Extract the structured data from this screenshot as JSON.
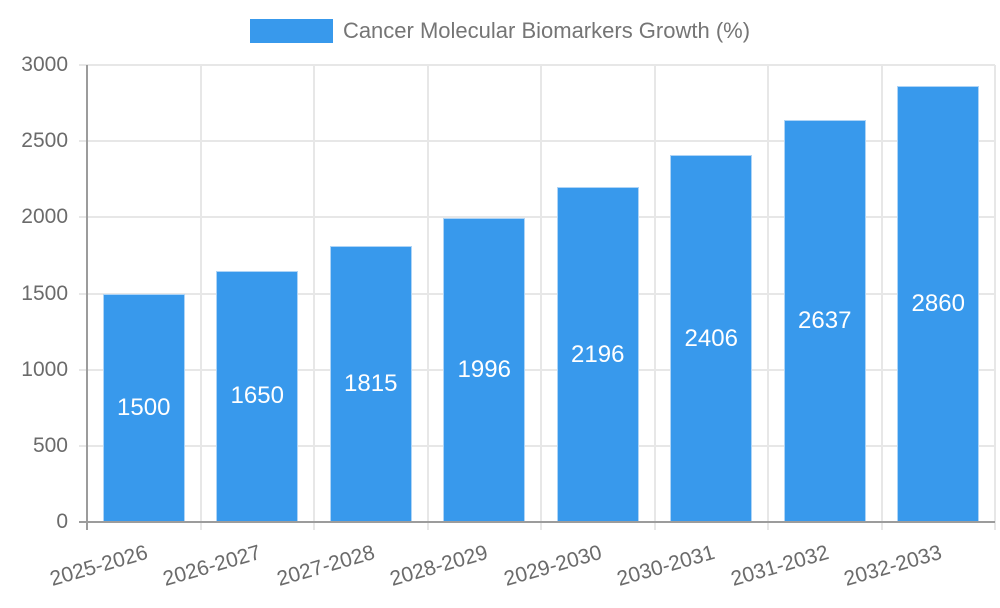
{
  "legend": {
    "label": "Cancer Molecular Biomarkers Growth (%)"
  },
  "colors": {
    "bar": "#3899ec",
    "bar_border": "#aed4f6",
    "grid": "#e7e7e7",
    "axis": "#9c9c9c",
    "tick_text": "#6b6b6b",
    "legend_text": "#757575",
    "value_label": "#ffffff",
    "background": "#ffffff"
  },
  "chart_data": {
    "type": "bar",
    "title": "Cancer Molecular Biomarkers Growth (%)",
    "categories": [
      "2025-2026",
      "2026-2027",
      "2027-2028",
      "2028-2029",
      "2029-2030",
      "2030-2031",
      "2031-2032",
      "2032-2033"
    ],
    "values": [
      1500,
      1650,
      1815,
      1996,
      2196,
      2406,
      2637,
      2860
    ],
    "value_labels_position": "inside-center",
    "xlabel": "",
    "ylabel": "",
    "ylim": [
      0,
      3000
    ],
    "yticks": [
      0,
      500,
      1000,
      1500,
      2000,
      2500,
      3000
    ],
    "grid": true,
    "legend_position": "top-center",
    "x_tick_rotation_deg": -16
  }
}
